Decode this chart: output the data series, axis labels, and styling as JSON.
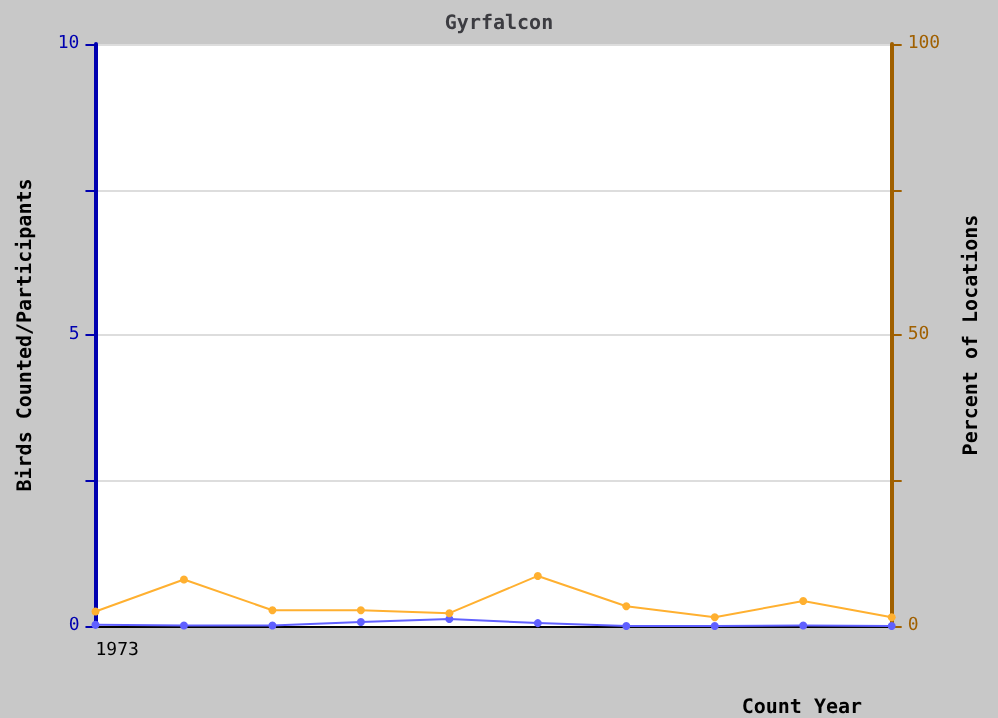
{
  "chart_data": {
    "type": "line",
    "title": "Gyrfalcon",
    "xlabel": "Count Year",
    "ylabel": "Birds Counted/Participants",
    "y2label": "Percent of Locations",
    "categories": [
      "1973",
      null,
      null,
      null,
      null,
      null,
      null,
      null,
      null,
      null
    ],
    "series": [
      {
        "color": "#6060ff",
        "values": [
          0.02,
          0.01,
          0.01,
          0.07,
          0.12,
          0.05,
          0,
          0,
          0.01,
          0
        ]
      },
      {
        "color": "#ffb030",
        "axis": "y2",
        "values": [
          2.5,
          8.0,
          2.7,
          2.7,
          2.2,
          8.6,
          3.4,
          1.5,
          4.3,
          1.5
        ]
      }
    ],
    "ylim": [
      0,
      10
    ],
    "yticks": [
      0,
      {
        "value": 2.5,
        "label": null
      },
      5,
      {
        "value": 7.5,
        "label": null
      },
      10
    ],
    "y2lim": [
      0,
      100
    ],
    "y2ticks": [
      0,
      {
        "value": 25,
        "label": null
      },
      50,
      {
        "value": 75,
        "label": null
      },
      100
    ],
    "grid": "y",
    "marker": "circle"
  }
}
